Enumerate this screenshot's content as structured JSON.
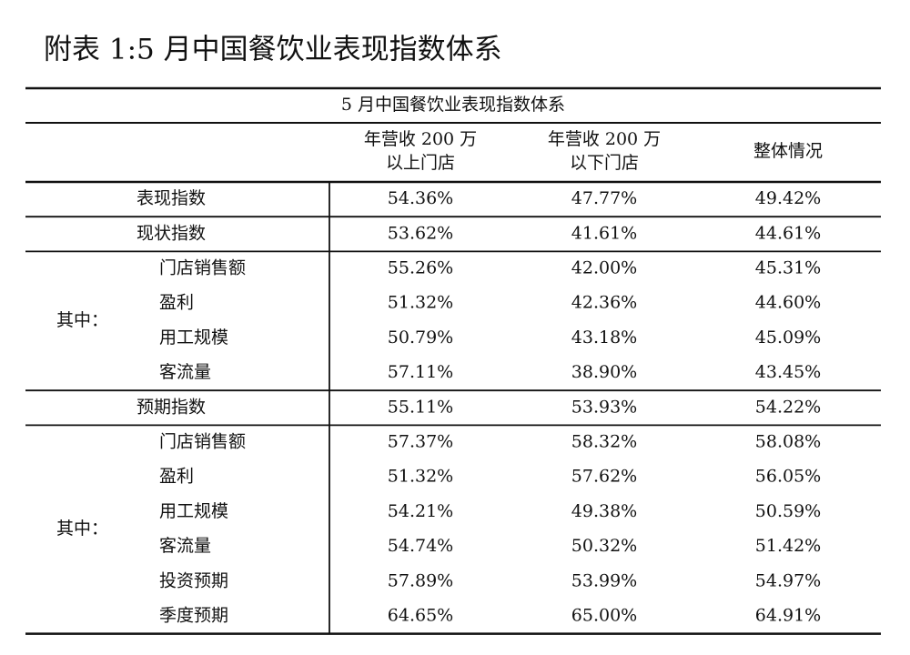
{
  "title": "附表 1:5 月中国餐饮业表现指数体系",
  "table": {
    "caption": "5 月中国餐饮业表现指数体系",
    "header": [
      [
        "年营收 200 万",
        "以上门店"
      ],
      [
        "年营收 200 万",
        "以下门店"
      ],
      [
        "整体情况"
      ]
    ],
    "sections": [
      {
        "label": "表现指数",
        "values": [
          "54.36%",
          "47.77%",
          "49.42%"
        ]
      },
      {
        "label": "现状指数",
        "values": [
          "53.62%",
          "41.61%",
          "44.61%"
        ]
      },
      {
        "group": "其中：",
        "rows": [
          {
            "label": "门店销售额",
            "values": [
              "55.26%",
              "42.00%",
              "45.31%"
            ]
          },
          {
            "label": "盈利",
            "values": [
              "51.32%",
              "42.36%",
              "44.60%"
            ]
          },
          {
            "label": "用工规模",
            "values": [
              "50.79%",
              "43.18%",
              "45.09%"
            ]
          },
          {
            "label": "客流量",
            "values": [
              "57.11%",
              "38.90%",
              "43.45%"
            ]
          }
        ]
      },
      {
        "label": "预期指数",
        "values": [
          "55.11%",
          "53.93%",
          "54.22%"
        ]
      },
      {
        "group": "其中：",
        "rows": [
          {
            "label": "门店销售额",
            "values": [
              "57.37%",
              "58.32%",
              "58.08%"
            ]
          },
          {
            "label": "盈利",
            "values": [
              "51.32%",
              "57.62%",
              "56.05%"
            ]
          },
          {
            "label": "用工规模",
            "values": [
              "54.21%",
              "49.38%",
              "50.59%"
            ]
          },
          {
            "label": "客流量",
            "values": [
              "54.74%",
              "50.32%",
              "51.42%"
            ]
          },
          {
            "label": "投资预期",
            "values": [
              "57.89%",
              "53.99%",
              "54.97%"
            ]
          },
          {
            "label": "季度预期",
            "values": [
              "64.65%",
              "65.00%",
              "64.91%"
            ]
          }
        ]
      }
    ]
  }
}
